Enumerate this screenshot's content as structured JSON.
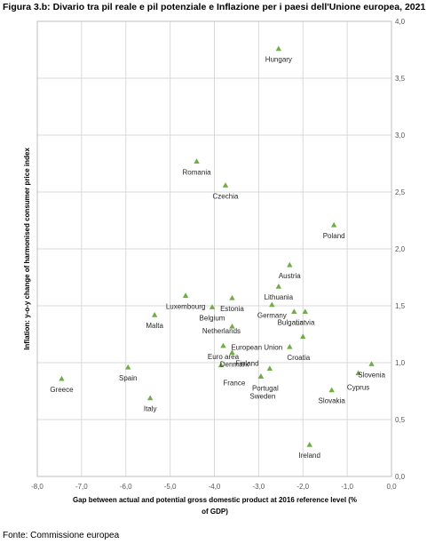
{
  "figure": {
    "title": "Figura 3.b: Divario tra pil reale e pil potenziale e Inflazione per i paesi dell'Unione europea, 2021",
    "source": "Fonte: Commissione europea"
  },
  "chart_data": {
    "type": "scatter",
    "xlabel": "Gap between actual and potential gross domestic product at 2016 reference level (% of GDP)",
    "ylabel": "Inflation: y-o-y change of harmonised consumer price index",
    "xlim": [
      -8.0,
      0.0
    ],
    "ylim": [
      0.0,
      4.0
    ],
    "x_ticks": [
      "-8,0",
      "-7,0",
      "-6,0",
      "-5,0",
      "-4,0",
      "-3,0",
      "-2,0",
      "-1,0",
      "0,0"
    ],
    "y_ticks": [
      "0,0",
      "0,5",
      "1,0",
      "1,5",
      "2,0",
      "2,5",
      "3,0",
      "3,5",
      "4,0"
    ],
    "grid": true,
    "y_axis_side": "right",
    "marker": "triangle",
    "marker_color": "#70AD47",
    "points": [
      {
        "label": "Hungary",
        "x": -2.55,
        "y": 3.76
      },
      {
        "label": "Romania",
        "x": -4.4,
        "y": 2.77
      },
      {
        "label": "Czechia",
        "x": -3.75,
        "y": 2.56
      },
      {
        "label": "Poland",
        "x": -1.3,
        "y": 2.21
      },
      {
        "label": "Austria",
        "x": -2.3,
        "y": 1.86
      },
      {
        "label": "Lithuania",
        "x": -2.55,
        "y": 1.67
      },
      {
        "label": "Luxembourg",
        "x": -4.65,
        "y": 1.59
      },
      {
        "label": "Estonia",
        "x": -3.6,
        "y": 1.57
      },
      {
        "label": "Belgium",
        "x": -4.05,
        "y": 1.49
      },
      {
        "label": "Germany",
        "x": -2.7,
        "y": 1.51
      },
      {
        "label": "Bulgaria",
        "x": -2.2,
        "y": 1.45
      },
      {
        "label": "Latvia",
        "x": -1.95,
        "y": 1.45
      },
      {
        "label": "Malta",
        "x": -5.35,
        "y": 1.42
      },
      {
        "label": "Netherlands",
        "x": -3.6,
        "y": 1.32
      },
      {
        "label": "European Union",
        "x": -2.0,
        "y": 1.23
      },
      {
        "label": "Euro area",
        "x": -3.8,
        "y": 1.15
      },
      {
        "label": "Croatia",
        "x": -2.3,
        "y": 1.14
      },
      {
        "label": "Finland",
        "x": -3.6,
        "y": 1.09
      },
      {
        "label": "Denmark",
        "x": -3.85,
        "y": 0.98
      },
      {
        "label": "Spain",
        "x": -5.95,
        "y": 0.96
      },
      {
        "label": "France",
        "x": -2.75,
        "y": 0.95
      },
      {
        "label": "Portugal",
        "x": -2.95,
        "y": 0.88
      },
      {
        "label": "Greece",
        "x": -7.45,
        "y": 0.86
      },
      {
        "label": "Sweden",
        "x": -2.95,
        "y": 0.88
      },
      {
        "label": "Slovenia",
        "x": -0.45,
        "y": 0.99
      },
      {
        "label": "Cyprus",
        "x": -0.75,
        "y": 0.91
      },
      {
        "label": "Slovakia",
        "x": -1.35,
        "y": 0.76
      },
      {
        "label": "Italy",
        "x": -5.45,
        "y": 0.69
      },
      {
        "label": "Ireland",
        "x": -1.85,
        "y": 0.28
      }
    ]
  }
}
